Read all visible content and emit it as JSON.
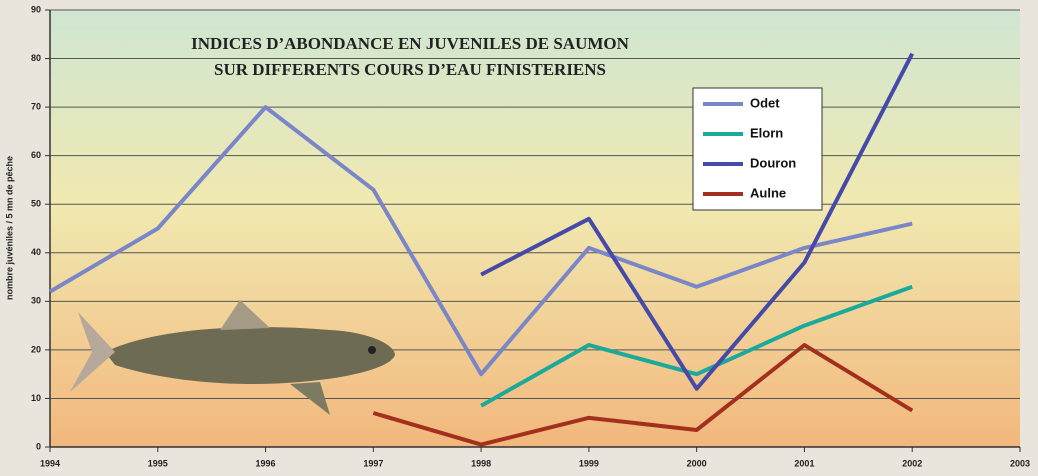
{
  "chart_data": {
    "type": "line",
    "title": "INDICES D’ABONDANCE EN JUVENILES DE SAUMON",
    "subtitle": "SUR DIFFERENTS COURS D’EAU FINISTERIENS",
    "y_label": "nombre juvéniles / 5 mn de pêche",
    "x": [
      1994,
      1995,
      1996,
      1997,
      1998,
      1999,
      2000,
      2001,
      2002
    ],
    "xlim": [
      1994,
      2003
    ],
    "xticks": [
      1994,
      1995,
      1996,
      1997,
      1998,
      1999,
      2000,
      2001,
      2002,
      2003
    ],
    "ylim": [
      0,
      90
    ],
    "yticks": [
      0,
      10,
      20,
      30,
      40,
      50,
      60,
      70,
      80,
      90
    ],
    "grid": true,
    "series": [
      {
        "name": "Odet",
        "color": "#7b86c8",
        "values": [
          32,
          45,
          70,
          53,
          15,
          41,
          33,
          41,
          46
        ]
      },
      {
        "name": "Elorn",
        "color": "#1aa99a",
        "values": [
          null,
          null,
          null,
          null,
          8.5,
          21,
          15,
          25,
          33
        ]
      },
      {
        "name": "Douron",
        "color": "#454aa8",
        "values": [
          null,
          null,
          null,
          null,
          35.5,
          47,
          12,
          38,
          81
        ]
      },
      {
        "name": "Aulne",
        "color": "#a3301c",
        "values": [
          null,
          null,
          null,
          7,
          0.5,
          6,
          3.5,
          21,
          7.5
        ]
      }
    ]
  }
}
